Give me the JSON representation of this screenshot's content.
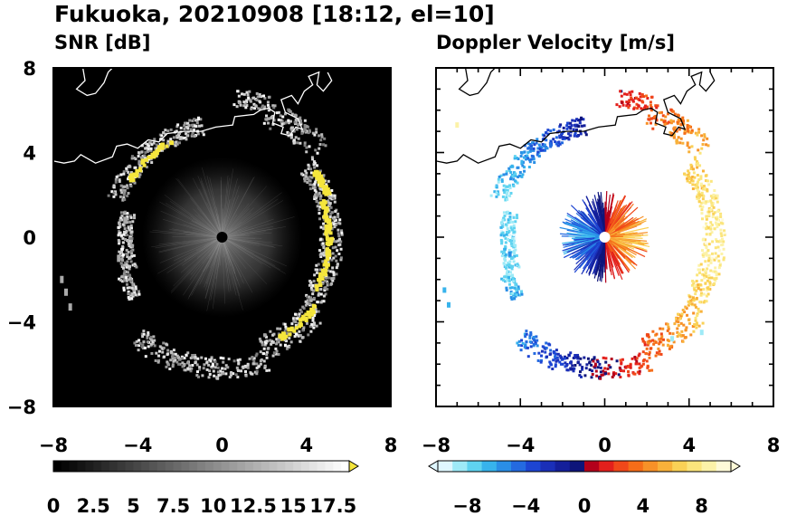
{
  "figure": {
    "title": "Fukuoka, 20210908 [18:12, el=10]"
  },
  "panels": [
    {
      "id": "snr",
      "subtitle": "SNR [dB]",
      "background": "#000000"
    },
    {
      "id": "doppler",
      "subtitle": "Doppler Velocity [m/s]",
      "background": "#ffffff"
    }
  ],
  "colorbars": {
    "snr": {
      "range": [
        0,
        18.5
      ],
      "over_color": "#f5e63c",
      "tick_labels": [
        "0",
        "2.5",
        "5",
        "7.5",
        "10",
        "12.5",
        "15",
        "17.5"
      ],
      "tick_values": [
        0,
        2.5,
        5,
        7.5,
        10,
        12.5,
        15,
        17.5
      ],
      "extend": "max"
    },
    "doppler": {
      "range": [
        -10,
        10
      ],
      "tick_labels": [
        "-8",
        "-4",
        "0",
        "4",
        "8"
      ],
      "tick_values": [
        -8,
        -4,
        0,
        4,
        8
      ],
      "extend": "both",
      "colors": [
        "#dff7ff",
        "#9eeaf7",
        "#5fd3f0",
        "#37b3ec",
        "#2a8ee6",
        "#246ae0",
        "#1d45d2",
        "#1a2fb8",
        "#141f9a",
        "#0e157a",
        "#b3001b",
        "#e3201c",
        "#f0481a",
        "#f56d19",
        "#f79128",
        "#f8b13a",
        "#fad156",
        "#fbe57c",
        "#fcf2a8",
        "#fefad8"
      ]
    }
  },
  "chart_data": [
    {
      "type": "heatmap",
      "name": "SNR [dB]",
      "xlim": [
        -8,
        8
      ],
      "ylim": [
        -8,
        8
      ],
      "x_ticks": [
        -8,
        -4,
        0,
        4,
        8
      ],
      "y_ticks": [
        -8,
        -4,
        0,
        4,
        8
      ],
      "x_tick_labels": [
        "-8",
        "-4",
        "0",
        "4",
        "8"
      ],
      "y_tick_labels": [
        "-8",
        "-4",
        "0",
        "4",
        "8"
      ],
      "value_range": [
        0,
        18.5
      ],
      "note": "Ring of echoes at radius ~4.5-6 km; saturated (>17.5 dB) yellow segments on NW and E/SE parts of ring; low-level noise disk within ~3.5 km"
    },
    {
      "type": "heatmap",
      "name": "Doppler Velocity [m/s]",
      "xlim": [
        -8,
        8
      ],
      "ylim": [
        -8,
        8
      ],
      "x_ticks": [
        -8,
        -4,
        0,
        4,
        8
      ],
      "y_ticks": [
        -8,
        -4,
        0,
        4,
        8
      ],
      "x_tick_labels": [
        "-8",
        "-4",
        "0",
        "4",
        "8"
      ],
      "y_tick_labels": [
        "-8",
        "-4",
        "0",
        "4",
        "8"
      ],
      "value_range": [
        -10,
        10
      ],
      "note": "Negative (blue) velocities on west half, positive (red/orange) on east half; near-radar disk blue on west, orange on east"
    }
  ]
}
